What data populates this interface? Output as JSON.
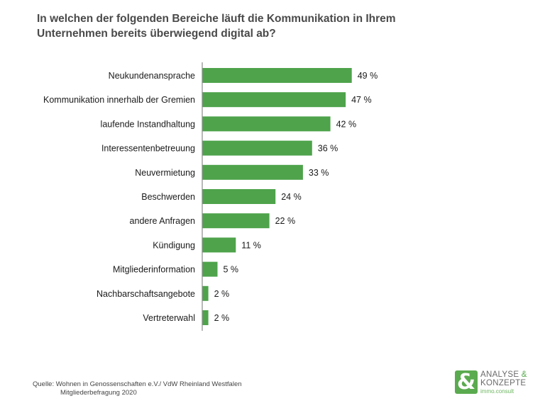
{
  "title": {
    "line1": "In welchen der folgenden Bereiche läuft die Kommunikation in Ihrem",
    "line2": "Unternehmen bereits überwiegend digital ab?"
  },
  "chart_data": {
    "type": "bar",
    "orientation": "horizontal",
    "title": "In welchen der folgenden Bereiche läuft die Kommunikation in Ihrem Unternehmen bereits überwiegend digital ab?",
    "categories": [
      "Neukundenansprache",
      "Kommunikation innerhalb der Gremien",
      "laufende Instandhaltung",
      "Interessentenbetreuung",
      "Neuvermietung",
      "Beschwerden",
      "andere Anfragen",
      "Kündigung",
      "Mitgliederinformation",
      "Nachbarschaftsangebote",
      "Vertreterwahl"
    ],
    "values": [
      49,
      47,
      42,
      36,
      33,
      24,
      22,
      11,
      5,
      2,
      2
    ],
    "value_labels": [
      "49 %",
      "47 %",
      "42 %",
      "36 %",
      "33 %",
      "24 %",
      "22 %",
      "11 %",
      "5 %",
      "2 %",
      "2 %"
    ],
    "unit": "%",
    "xlabel": "",
    "ylabel": "",
    "xlim": [
      0,
      100
    ],
    "grid": false,
    "legend": "none",
    "bar_color": "#4ea34b",
    "axis_color": "#8a8a8a"
  },
  "source": {
    "line1": "Quelle: Wohnen in Genossenschaften e.V./ VdW Rheinland Westfalen",
    "line2": "Mitgliederbefragung 2020"
  },
  "logo": {
    "symbol": "&",
    "line1_a": "ANALYSE ",
    "line1_amp": "&",
    "line2": "KONZEPTE",
    "line3": "immo.consult",
    "brand_color": "#5aaa4f"
  }
}
